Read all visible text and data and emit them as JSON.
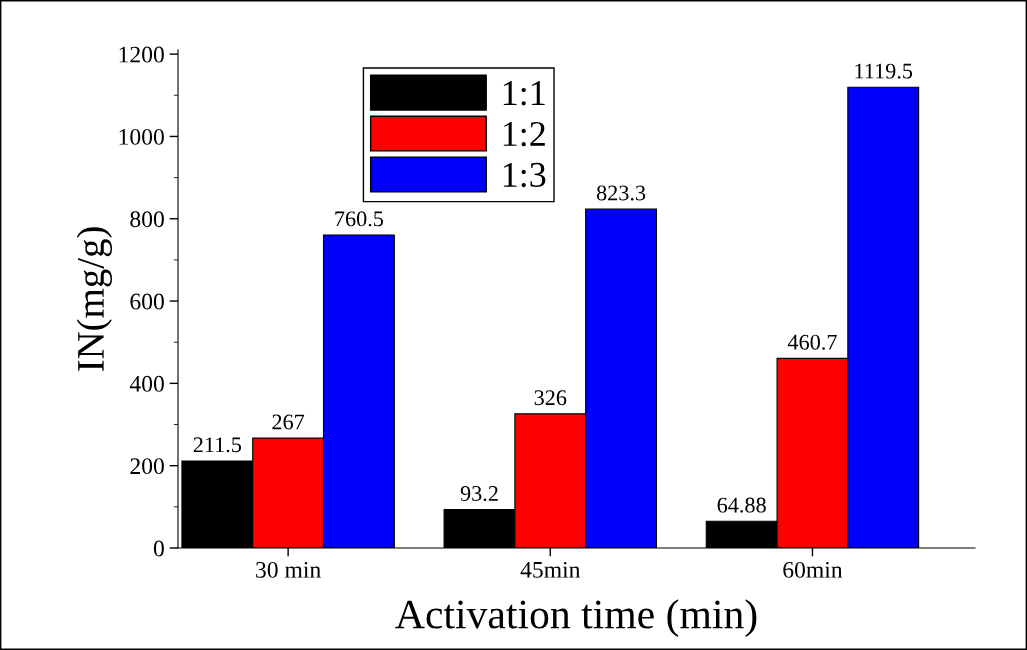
{
  "chart_data": {
    "type": "bar",
    "xlabel": "Activation time (min)",
    "ylabel": "IN(mg/g)",
    "categories": [
      "30 min",
      "45min",
      "60min"
    ],
    "series": [
      {
        "name": "1:1",
        "color": "#000000",
        "values": [
          211.5,
          93.2,
          64.88
        ]
      },
      {
        "name": "1:2",
        "color": "#ff0000",
        "values": [
          267,
          326,
          460.7
        ]
      },
      {
        "name": "1:3",
        "color": "#0000ff",
        "values": [
          760.5,
          823.3,
          1119.5
        ]
      }
    ],
    "ylim": [
      0,
      1210
    ],
    "yticks": [
      0,
      200,
      400,
      600,
      800,
      1000,
      1200
    ],
    "data_labels": true,
    "legend": "top left",
    "grid": false
  }
}
